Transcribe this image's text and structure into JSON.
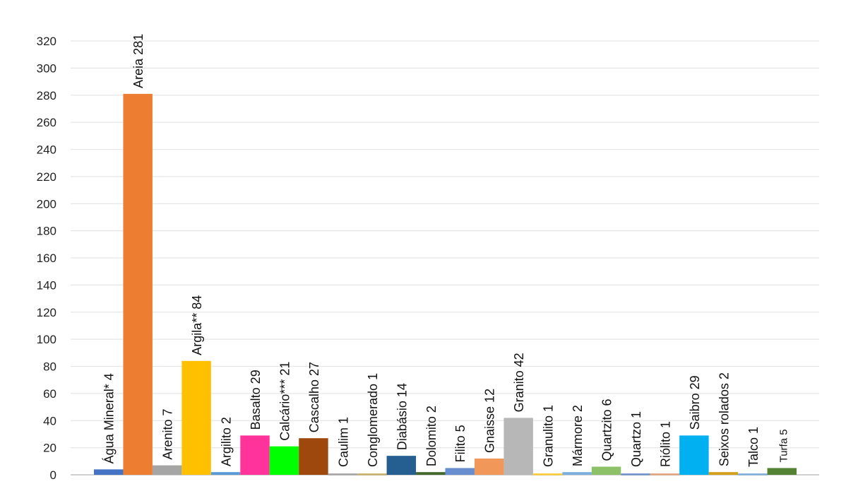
{
  "chart_data": {
    "type": "bar",
    "title": "",
    "xlabel": "",
    "ylabel": "",
    "ylim": [
      0,
      320
    ],
    "yticks": [
      0,
      20,
      40,
      60,
      80,
      100,
      120,
      140,
      160,
      180,
      200,
      220,
      240,
      260,
      280,
      300,
      320
    ],
    "grid": true,
    "legend": "none",
    "categories": [
      "Água Mineral*",
      "Areia",
      "Arenito",
      "Argila**",
      "Argilito",
      "Basalto",
      "Calcário***",
      "Cascalho",
      "Caulim",
      "Conglomerado",
      "Diabásio",
      "Dolomito",
      "Filito",
      "Gnaisse",
      "Granito",
      "Granulito",
      "Mármore",
      "Quartzito",
      "Quartzo",
      "Riólito",
      "Saibro",
      "Seixos rolados",
      "Talco",
      "Turfa"
    ],
    "values": [
      4,
      281,
      7,
      84,
      2,
      29,
      21,
      27,
      1,
      1,
      14,
      2,
      5,
      12,
      42,
      1,
      2,
      6,
      1,
      1,
      29,
      2,
      1,
      5
    ],
    "data_labels": [
      "Água Mineral* 4",
      "Areia 281",
      "Arenito 7",
      "Argila** 84",
      "Argilito 2",
      "Basalto 29",
      "Calcário*** 21",
      "Cascalho 27",
      "Caulim 1",
      "Conglomerado 1",
      "Diabásio 14",
      "Dolomito 2",
      "Filito 5",
      "Gnaisse 12",
      "Granito 42",
      "Granulito 1",
      "Mármore 2",
      "Quartzito 6",
      "Quartzo 1",
      "Riólito 1",
      "Saibro 29",
      "Seixos rolados 2",
      "Talco 1",
      "Turfa 5"
    ],
    "colors": [
      "#4472C4",
      "#ED7D31",
      "#A5A5A5",
      "#FFC000",
      "#5B9BD5",
      "#FF3399",
      "#00FF00",
      "#9E480E",
      "#A5A5A5",
      "#C9B06B",
      "#255E91",
      "#43682B",
      "#698ED0",
      "#F1975A",
      "#B7B7B7",
      "#FFCD33",
      "#7CAFDD",
      "#8CC168",
      "#6F8FCE",
      "#E4A47C",
      "#00B0F0",
      "#D4A017",
      "#7CAFDD",
      "#548235"
    ]
  }
}
